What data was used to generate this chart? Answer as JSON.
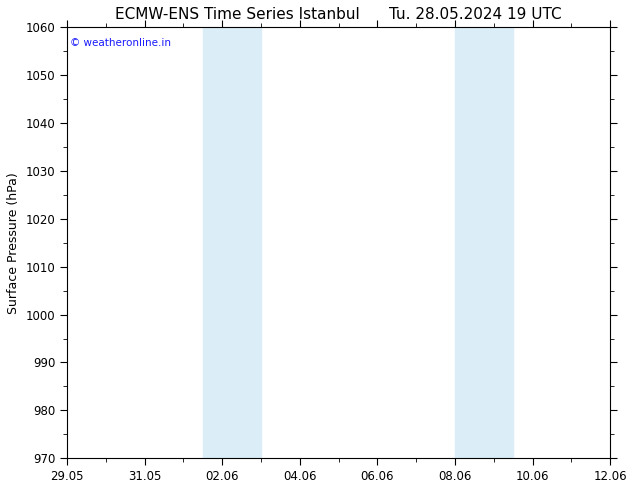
{
  "title": "ECMW-ENS Time Series Istanbul      Tu. 28.05.2024 19 UTC",
  "ylabel": "Surface Pressure (hPa)",
  "ylim": [
    970,
    1060
  ],
  "yticks": [
    970,
    980,
    990,
    1000,
    1010,
    1020,
    1030,
    1040,
    1050,
    1060
  ],
  "x_start": "2024-05-29",
  "x_end": "2024-06-12",
  "x_tick_labels": [
    "29.05",
    "31.05",
    "02.06",
    "04.06",
    "06.06",
    "08.06",
    "10.06",
    "12.06"
  ],
  "x_tick_days_offset": [
    0,
    2,
    4,
    6,
    8,
    10,
    12,
    14
  ],
  "shaded_bands": [
    {
      "day_start": 3.5,
      "day_end": 5.0
    },
    {
      "day_start": 10.0,
      "day_end": 11.5
    }
  ],
  "shade_color": "#dbeef8",
  "fig_bg_color": "#ffffff",
  "plot_bg_color": "#ffffff",
  "copyright_text": "© weatheronline.in",
  "copyright_color": "#1a1aff",
  "title_fontsize": 11,
  "tick_fontsize": 8.5,
  "ylabel_fontsize": 9,
  "minor_tick_interval": 1
}
